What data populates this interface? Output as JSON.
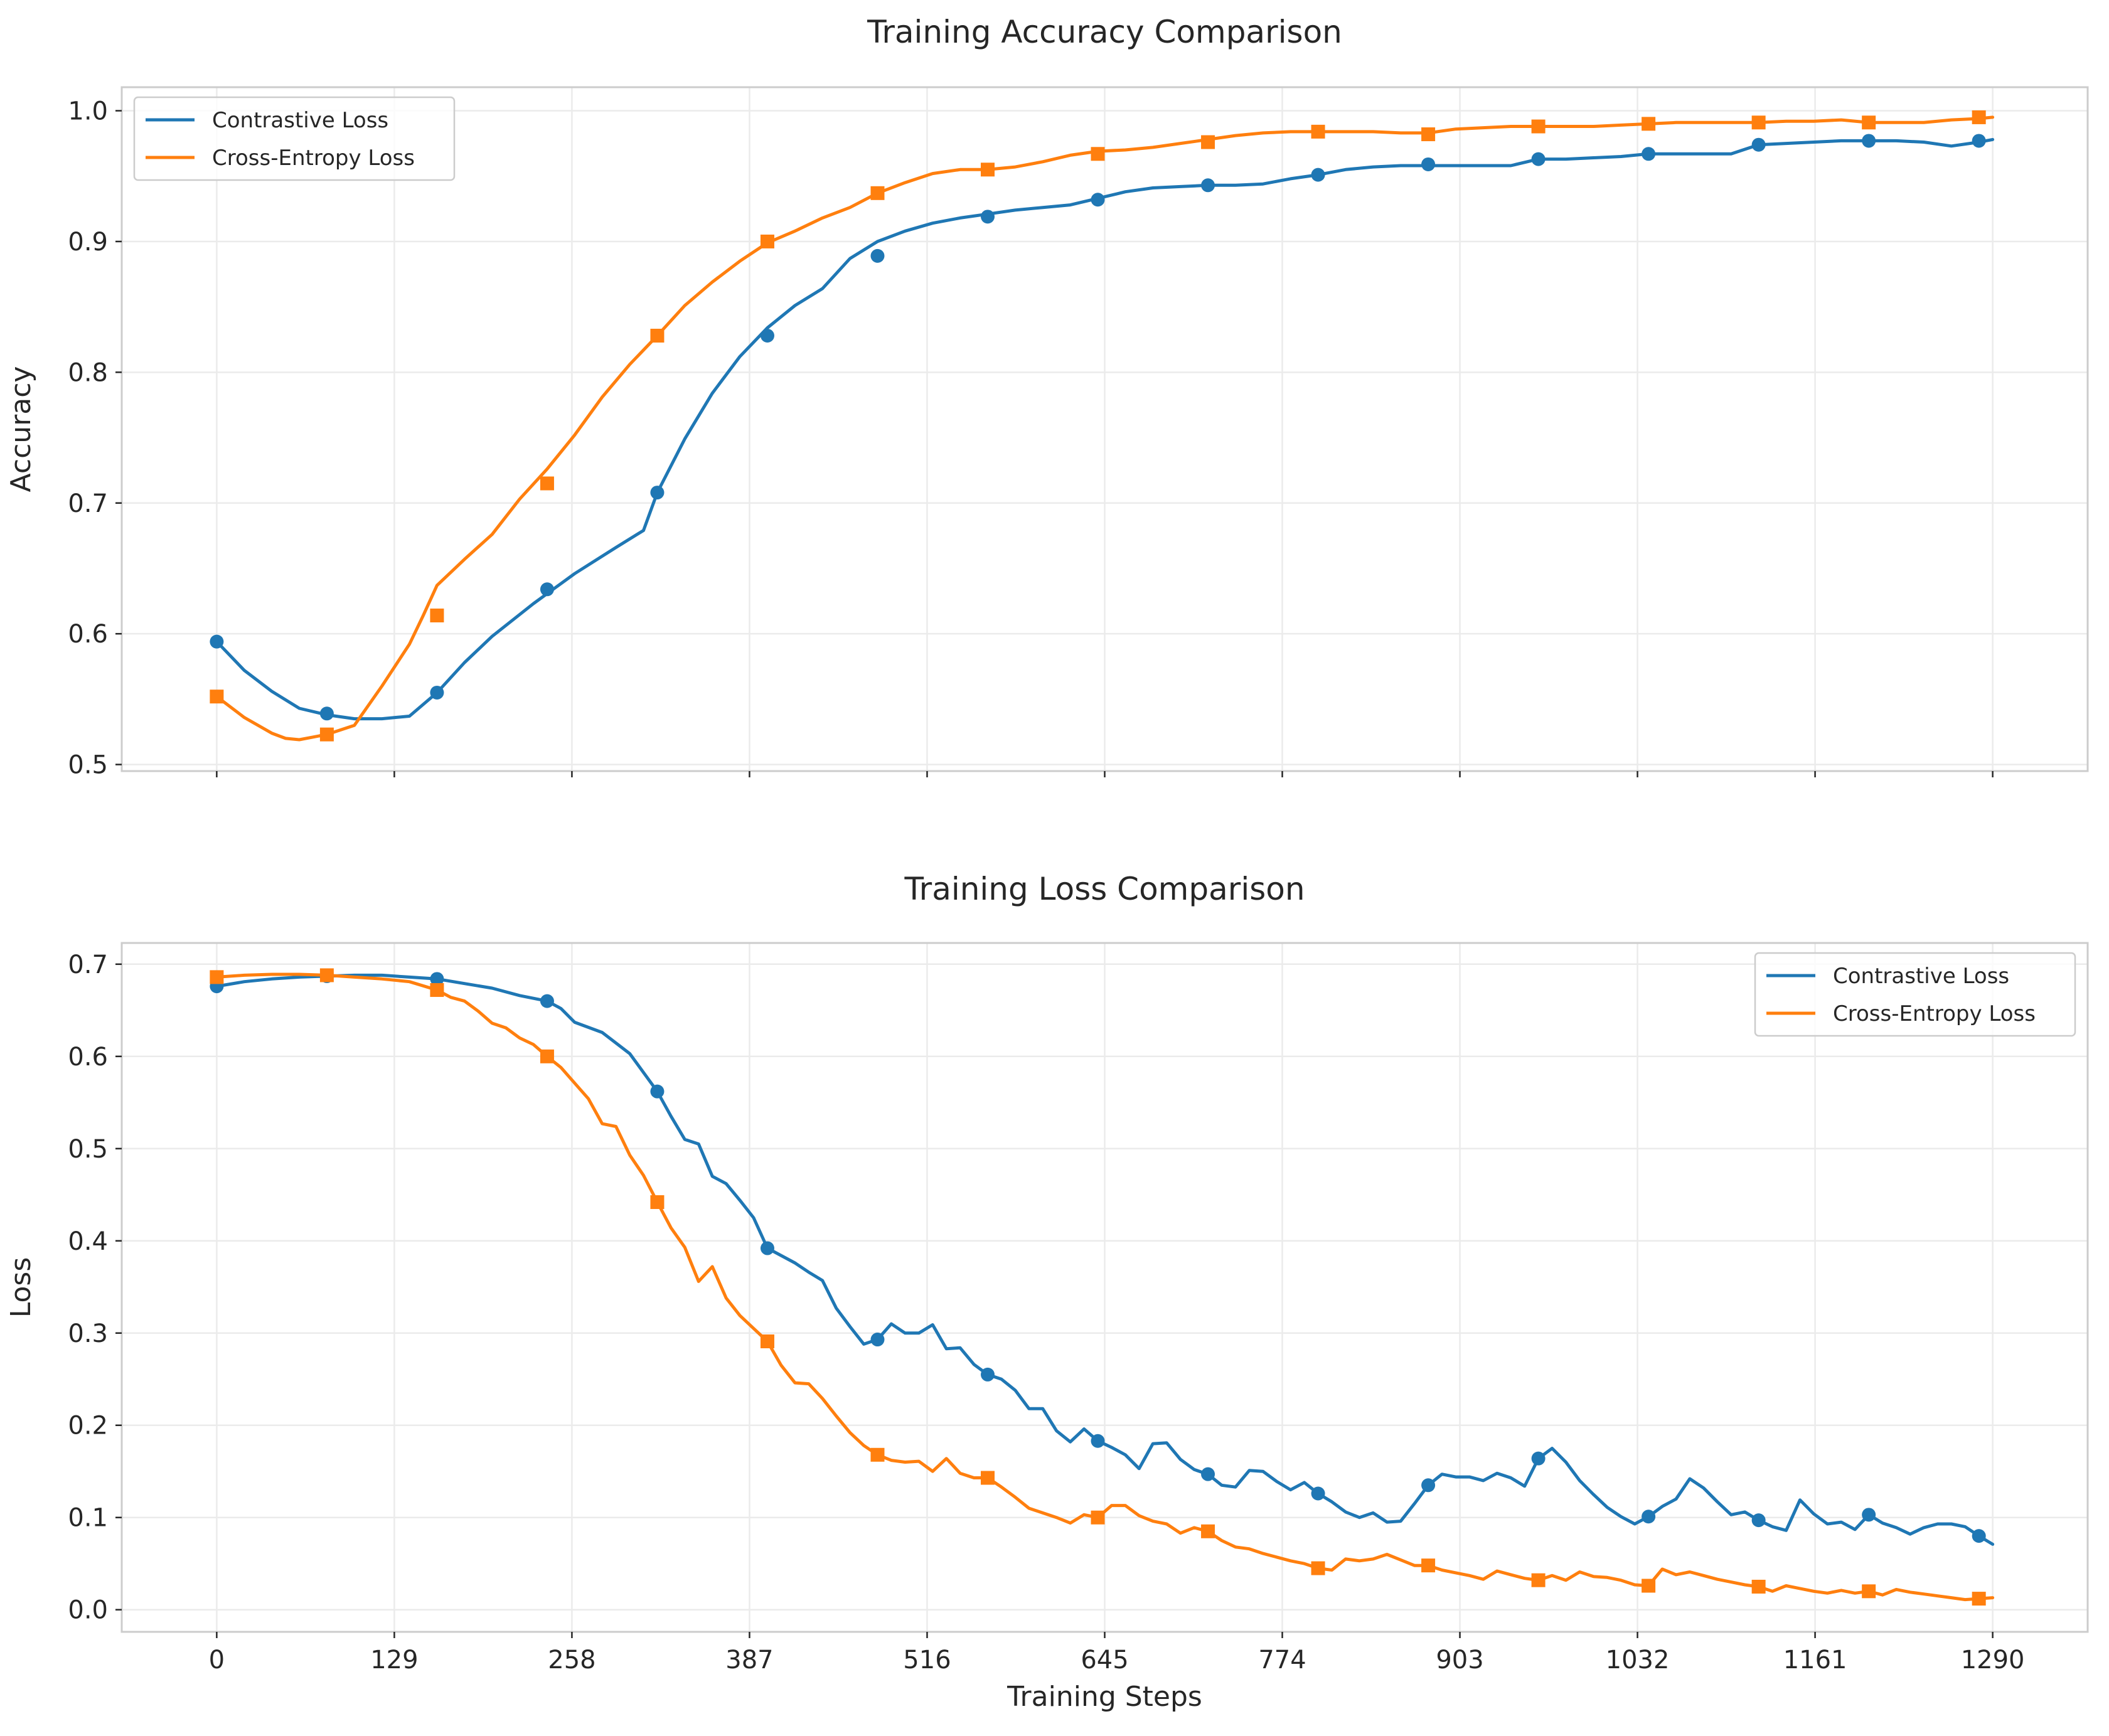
{
  "chart_data": [
    {
      "type": "line",
      "title": "Training Accuracy Comparison",
      "xlabel": "",
      "ylabel": "Accuracy",
      "xlim": [
        -69,
        1359
      ],
      "ylim": [
        0.495,
        1.018
      ],
      "x_ticks": [
        0,
        129,
        258,
        387,
        516,
        645,
        774,
        903,
        1032,
        1161,
        1290
      ],
      "y_ticks": [
        0.5,
        0.6,
        0.7,
        0.8,
        0.9,
        1.0
      ],
      "y_tick_labels": [
        "0.5",
        "0.6",
        "0.7",
        "0.8",
        "0.9",
        "1.0"
      ],
      "show_x_tick_labels": false,
      "grid": true,
      "legend": "top-left",
      "series": [
        {
          "name": "Contrastive Loss",
          "color": "#1f77b4",
          "marker": "circle",
          "x": [
            0,
            20,
            40,
            60,
            80,
            100,
            120,
            140,
            160,
            180,
            200,
            230,
            260,
            290,
            310,
            320,
            340,
            360,
            380,
            400,
            420,
            440,
            460,
            480,
            500,
            520,
            540,
            560,
            580,
            600,
            620,
            640,
            660,
            680,
            700,
            720,
            740,
            760,
            780,
            800,
            820,
            840,
            860,
            880,
            900,
            920,
            940,
            960,
            980,
            1000,
            1020,
            1040,
            1060,
            1080,
            1100,
            1120,
            1140,
            1160,
            1180,
            1200,
            1220,
            1240,
            1260,
            1280,
            1290
          ],
          "y": [
            0.594,
            0.572,
            0.556,
            0.543,
            0.538,
            0.535,
            0.535,
            0.537,
            0.555,
            0.578,
            0.598,
            0.623,
            0.646,
            0.666,
            0.679,
            0.708,
            0.749,
            0.784,
            0.812,
            0.834,
            0.851,
            0.864,
            0.887,
            0.9,
            0.908,
            0.914,
            0.918,
            0.921,
            0.924,
            0.926,
            0.928,
            0.933,
            0.938,
            0.941,
            0.942,
            0.943,
            0.943,
            0.944,
            0.948,
            0.951,
            0.955,
            0.957,
            0.958,
            0.958,
            0.958,
            0.958,
            0.958,
            0.963,
            0.963,
            0.964,
            0.965,
            0.967,
            0.967,
            0.967,
            0.967,
            0.974,
            0.975,
            0.976,
            0.977,
            0.977,
            0.977,
            0.976,
            0.973,
            0.976,
            0.978
          ],
          "marker_x": [
            0,
            80,
            160,
            240,
            320,
            400,
            480,
            560,
            640,
            720,
            800,
            880,
            960,
            1040,
            1120,
            1200,
            1280
          ],
          "marker_y": [
            0.594,
            0.539,
            0.555,
            0.634,
            0.708,
            0.828,
            0.889,
            0.919,
            0.932,
            0.943,
            0.951,
            0.959,
            0.963,
            0.967,
            0.974,
            0.977,
            0.977
          ]
        },
        {
          "name": "Cross-Entropy Loss",
          "color": "#ff7f0e",
          "marker": "square",
          "x": [
            0,
            20,
            40,
            50,
            60,
            70,
            80,
            100,
            120,
            140,
            150,
            160,
            180,
            200,
            220,
            240,
            260,
            280,
            300,
            320,
            340,
            360,
            380,
            400,
            420,
            440,
            460,
            480,
            500,
            520,
            540,
            560,
            580,
            600,
            620,
            640,
            660,
            680,
            700,
            720,
            740,
            760,
            780,
            800,
            820,
            840,
            860,
            880,
            900,
            920,
            940,
            960,
            980,
            1000,
            1020,
            1040,
            1060,
            1080,
            1100,
            1120,
            1140,
            1160,
            1180,
            1200,
            1220,
            1240,
            1260,
            1280,
            1290
          ],
          "y": [
            0.552,
            0.536,
            0.524,
            0.52,
            0.519,
            0.521,
            0.523,
            0.53,
            0.56,
            0.592,
            0.614,
            0.637,
            0.657,
            0.676,
            0.703,
            0.726,
            0.752,
            0.781,
            0.806,
            0.828,
            0.851,
            0.869,
            0.885,
            0.899,
            0.908,
            0.918,
            0.926,
            0.937,
            0.945,
            0.952,
            0.955,
            0.955,
            0.957,
            0.961,
            0.966,
            0.969,
            0.97,
            0.972,
            0.975,
            0.978,
            0.981,
            0.983,
            0.984,
            0.984,
            0.984,
            0.984,
            0.983,
            0.983,
            0.986,
            0.987,
            0.988,
            0.988,
            0.988,
            0.988,
            0.989,
            0.99,
            0.991,
            0.991,
            0.991,
            0.991,
            0.992,
            0.992,
            0.993,
            0.991,
            0.991,
            0.991,
            0.993,
            0.994,
            0.995
          ],
          "marker_x": [
            0,
            80,
            160,
            240,
            320,
            400,
            480,
            560,
            640,
            720,
            800,
            880,
            960,
            1040,
            1120,
            1200,
            1280
          ],
          "marker_y": [
            0.552,
            0.523,
            0.614,
            0.715,
            0.828,
            0.9,
            0.937,
            0.955,
            0.967,
            0.976,
            0.984,
            0.982,
            0.988,
            0.99,
            0.991,
            0.991,
            0.995
          ]
        }
      ]
    },
    {
      "type": "line",
      "title": "Training Loss Comparison",
      "xlabel": "Training Steps",
      "ylabel": "Loss",
      "xlim": [
        -69,
        1359
      ],
      "ylim": [
        -0.024,
        0.723
      ],
      "x_ticks": [
        0,
        129,
        258,
        387,
        516,
        645,
        774,
        903,
        1032,
        1161,
        1290
      ],
      "x_tick_labels": [
        "0",
        "129",
        "258",
        "387",
        "516",
        "645",
        "774",
        "903",
        "1032",
        "1161",
        "1290"
      ],
      "y_ticks": [
        0.0,
        0.1,
        0.2,
        0.3,
        0.4,
        0.5,
        0.6,
        0.7
      ],
      "y_tick_labels": [
        "0.0",
        "0.1",
        "0.2",
        "0.3",
        "0.4",
        "0.5",
        "0.6",
        "0.7"
      ],
      "show_x_tick_labels": true,
      "grid": true,
      "legend": "top-right",
      "series": [
        {
          "name": "Contrastive Loss",
          "color": "#1f77b4",
          "marker": "circle",
          "x": [
            0,
            20,
            40,
            60,
            80,
            100,
            120,
            140,
            160,
            180,
            200,
            220,
            240,
            250,
            260,
            280,
            300,
            320,
            330,
            340,
            350,
            360,
            370,
            380,
            390,
            400,
            420,
            430,
            440,
            450,
            460,
            470,
            480,
            490,
            500,
            510,
            520,
            530,
            540,
            550,
            560,
            570,
            580,
            590,
            600,
            610,
            620,
            630,
            640,
            650,
            660,
            670,
            680,
            690,
            700,
            710,
            720,
            730,
            740,
            750,
            760,
            770,
            780,
            790,
            800,
            810,
            820,
            830,
            840,
            850,
            860,
            870,
            880,
            890,
            900,
            910,
            920,
            930,
            940,
            950,
            960,
            970,
            980,
            990,
            1000,
            1010,
            1020,
            1030,
            1040,
            1050,
            1060,
            1070,
            1080,
            1090,
            1100,
            1110,
            1120,
            1130,
            1140,
            1150,
            1160,
            1170,
            1180,
            1190,
            1200,
            1210,
            1220,
            1230,
            1240,
            1250,
            1260,
            1270,
            1280,
            1290
          ],
          "y": [
            0.676,
            0.681,
            0.684,
            0.686,
            0.687,
            0.688,
            0.688,
            0.686,
            0.684,
            0.679,
            0.674,
            0.666,
            0.66,
            0.652,
            0.637,
            0.626,
            0.603,
            0.562,
            0.535,
            0.51,
            0.505,
            0.47,
            0.462,
            0.444,
            0.425,
            0.392,
            0.376,
            0.366,
            0.357,
            0.327,
            0.307,
            0.288,
            0.293,
            0.31,
            0.3,
            0.3,
            0.309,
            0.283,
            0.284,
            0.266,
            0.255,
            0.25,
            0.238,
            0.218,
            0.218,
            0.194,
            0.182,
            0.196,
            0.183,
            0.176,
            0.168,
            0.153,
            0.18,
            0.181,
            0.163,
            0.152,
            0.147,
            0.135,
            0.133,
            0.151,
            0.15,
            0.139,
            0.13,
            0.138,
            0.126,
            0.117,
            0.106,
            0.1,
            0.105,
            0.095,
            0.096,
            0.115,
            0.135,
            0.147,
            0.144,
            0.144,
            0.14,
            0.148,
            0.143,
            0.134,
            0.164,
            0.175,
            0.16,
            0.14,
            0.125,
            0.111,
            0.101,
            0.093,
            0.101,
            0.112,
            0.12,
            0.142,
            0.132,
            0.117,
            0.103,
            0.106,
            0.097,
            0.09,
            0.086,
            0.119,
            0.104,
            0.093,
            0.095,
            0.087,
            0.103,
            0.094,
            0.089,
            0.082,
            0.089,
            0.093,
            0.093,
            0.09,
            0.08,
            0.071
          ],
          "marker_x": [
            0,
            80,
            160,
            240,
            320,
            400,
            480,
            560,
            640,
            720,
            800,
            880,
            960,
            1040,
            1120,
            1200,
            1280
          ],
          "marker_y": [
            0.676,
            0.687,
            0.684,
            0.66,
            0.562,
            0.392,
            0.293,
            0.255,
            0.183,
            0.147,
            0.126,
            0.135,
            0.164,
            0.101,
            0.097,
            0.103,
            0.08
          ]
        },
        {
          "name": "Cross-Entropy Loss",
          "color": "#ff7f0e",
          "marker": "square",
          "x": [
            0,
            20,
            40,
            60,
            80,
            100,
            120,
            140,
            160,
            170,
            180,
            190,
            200,
            210,
            220,
            230,
            240,
            250,
            260,
            270,
            280,
            290,
            300,
            310,
            320,
            330,
            340,
            350,
            360,
            370,
            380,
            390,
            400,
            410,
            420,
            430,
            440,
            450,
            460,
            470,
            480,
            490,
            500,
            510,
            520,
            530,
            540,
            550,
            560,
            570,
            580,
            590,
            600,
            610,
            620,
            630,
            640,
            650,
            660,
            670,
            680,
            690,
            700,
            710,
            720,
            730,
            740,
            750,
            760,
            770,
            780,
            790,
            800,
            810,
            820,
            830,
            840,
            850,
            860,
            870,
            880,
            890,
            900,
            910,
            920,
            930,
            940,
            950,
            960,
            970,
            980,
            990,
            1000,
            1010,
            1020,
            1030,
            1040,
            1050,
            1060,
            1070,
            1080,
            1090,
            1100,
            1110,
            1120,
            1130,
            1140,
            1150,
            1160,
            1170,
            1180,
            1190,
            1200,
            1210,
            1220,
            1230,
            1240,
            1250,
            1260,
            1270,
            1280,
            1290
          ],
          "y": [
            0.686,
            0.688,
            0.689,
            0.689,
            0.688,
            0.686,
            0.684,
            0.681,
            0.672,
            0.664,
            0.66,
            0.649,
            0.636,
            0.631,
            0.62,
            0.613,
            0.6,
            0.588,
            0.571,
            0.554,
            0.527,
            0.524,
            0.493,
            0.471,
            0.442,
            0.414,
            0.393,
            0.356,
            0.372,
            0.338,
            0.319,
            0.305,
            0.291,
            0.265,
            0.246,
            0.245,
            0.229,
            0.21,
            0.192,
            0.178,
            0.168,
            0.162,
            0.16,
            0.161,
            0.15,
            0.164,
            0.148,
            0.143,
            0.143,
            0.133,
            0.122,
            0.11,
            0.105,
            0.1,
            0.094,
            0.103,
            0.1,
            0.113,
            0.113,
            0.102,
            0.096,
            0.093,
            0.083,
            0.089,
            0.085,
            0.075,
            0.068,
            0.066,
            0.061,
            0.057,
            0.053,
            0.05,
            0.045,
            0.043,
            0.055,
            0.053,
            0.055,
            0.06,
            0.054,
            0.048,
            0.048,
            0.043,
            0.04,
            0.037,
            0.033,
            0.042,
            0.038,
            0.034,
            0.032,
            0.037,
            0.032,
            0.041,
            0.036,
            0.035,
            0.032,
            0.027,
            0.026,
            0.044,
            0.038,
            0.041,
            0.037,
            0.033,
            0.03,
            0.027,
            0.025,
            0.02,
            0.026,
            0.023,
            0.02,
            0.018,
            0.021,
            0.018,
            0.02,
            0.016,
            0.022,
            0.019,
            0.017,
            0.015,
            0.013,
            0.011,
            0.012,
            0.013
          ],
          "marker_x": [
            0,
            80,
            160,
            240,
            320,
            400,
            480,
            560,
            640,
            720,
            800,
            880,
            960,
            1040,
            1120,
            1200,
            1280
          ],
          "marker_y": [
            0.686,
            0.688,
            0.672,
            0.6,
            0.442,
            0.291,
            0.168,
            0.143,
            0.1,
            0.085,
            0.045,
            0.048,
            0.032,
            0.026,
            0.025,
            0.02,
            0.012
          ]
        }
      ]
    }
  ]
}
